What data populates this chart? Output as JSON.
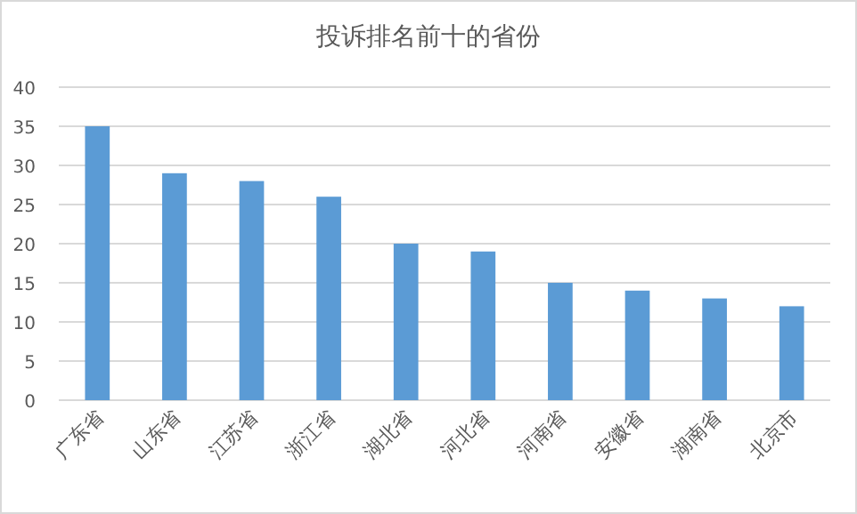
{
  "chart_data": {
    "type": "bar",
    "title": "投诉排名前十的省份",
    "categories": [
      "广东省",
      "山东省",
      "江苏省",
      "浙江省",
      "湖北省",
      "河北省",
      "河南省",
      "安徽省",
      "湖南省",
      "北京市"
    ],
    "values": [
      35,
      29,
      28,
      26,
      20,
      19,
      15,
      14,
      13,
      12
    ],
    "color": "#5b9bd5",
    "ylim": [
      0,
      40
    ],
    "yticks": [
      0,
      5,
      10,
      15,
      20,
      25,
      30,
      35,
      40
    ],
    "grid": "y"
  }
}
